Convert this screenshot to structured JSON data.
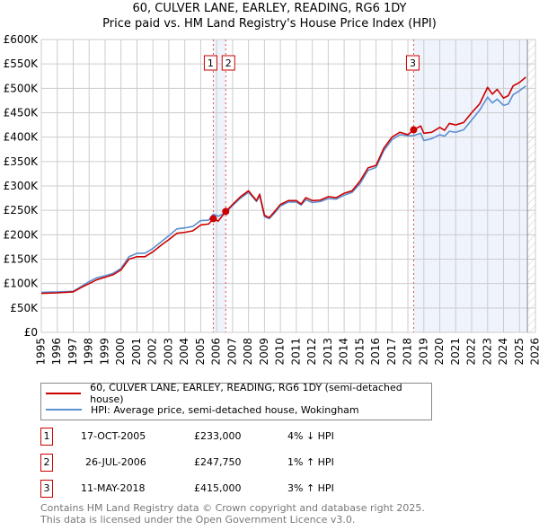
{
  "chart_data": {
    "type": "line",
    "title": "60, CULVER LANE, EARLEY, READING, RG6 1DY",
    "subtitle": "Price paid vs. HM Land Registry's House Price Index (HPI)",
    "xlim": [
      1995,
      2026
    ],
    "ylim": [
      0,
      600000
    ],
    "x_ticks": [
      "1995",
      "1996",
      "1997",
      "1998",
      "1999",
      "2000",
      "2001",
      "2002",
      "2003",
      "2004",
      "2005",
      "2006",
      "2007",
      "2008",
      "2009",
      "2010",
      "2011",
      "2012",
      "2013",
      "2014",
      "2015",
      "2016",
      "2017",
      "2018",
      "2019",
      "2020",
      "2021",
      "2022",
      "2023",
      "2024",
      "2025",
      "2026"
    ],
    "y_ticks": [
      "£0",
      "£50K",
      "£100K",
      "£150K",
      "£200K",
      "£250K",
      "£300K",
      "£350K",
      "£400K",
      "£450K",
      "£500K",
      "£550K",
      "£600K"
    ],
    "grid": true,
    "series": [
      {
        "name": "60, CULVER LANE, EARLEY, READING, RG6 1DY (semi-detached house)",
        "color": "#cc0000",
        "x": [
          1995,
          1996,
          1997,
          1997.5,
          1998,
          1998.5,
          1999,
          1999.5,
          2000,
          2000.5,
          2001,
          2001.5,
          2002,
          2002.5,
          2003,
          2003.5,
          2004,
          2004.5,
          2005,
          2005.5,
          2005.79,
          2006.1,
          2006.57,
          2007,
          2007.5,
          2008,
          2008.3,
          2008.5,
          2008.7,
          2009,
          2009.3,
          2009.7,
          2010,
          2010.5,
          2011,
          2011.3,
          2011.6,
          2012,
          2012.5,
          2013,
          2013.5,
          2014,
          2014.5,
          2015,
          2015.5,
          2016,
          2016.5,
          2017,
          2017.5,
          2018,
          2018.36,
          2018.8,
          2019,
          2019.5,
          2020,
          2020.3,
          2020.6,
          2021,
          2021.5,
          2022,
          2022.5,
          2023,
          2023.3,
          2023.6,
          2024,
          2024.3,
          2024.6,
          2025,
          2025.4
        ],
        "y": [
          80000,
          81000,
          83000,
          92000,
          100000,
          108000,
          113000,
          118000,
          128000,
          150000,
          155000,
          155000,
          165000,
          178000,
          190000,
          203000,
          205000,
          208000,
          220000,
          222000,
          233000,
          228000,
          247750,
          262000,
          278000,
          290000,
          278000,
          270000,
          283000,
          240000,
          235000,
          250000,
          262000,
          270000,
          270000,
          263000,
          276000,
          270000,
          271000,
          278000,
          276000,
          285000,
          290000,
          310000,
          337000,
          342000,
          378000,
          400000,
          410000,
          405000,
          415000,
          423000,
          408000,
          410000,
          420000,
          414000,
          428000,
          425000,
          430000,
          450000,
          468000,
          502000,
          488000,
          498000,
          480000,
          485000,
          505000,
          512000,
          523000
        ]
      },
      {
        "name": "HPI: Average price, semi-detached house, Wokingham",
        "color": "#5b8fd0",
        "x": [
          1995,
          1996,
          1997,
          1997.5,
          1998,
          1998.5,
          1999,
          1999.5,
          2000,
          2000.5,
          2001,
          2001.5,
          2002,
          2002.5,
          2003,
          2003.5,
          2004,
          2004.5,
          2005,
          2005.5,
          2005.79,
          2006.1,
          2006.57,
          2007,
          2007.5,
          2008,
          2008.3,
          2008.5,
          2008.7,
          2009,
          2009.3,
          2009.7,
          2010,
          2010.5,
          2011,
          2011.3,
          2011.6,
          2012,
          2012.5,
          2013,
          2013.5,
          2014,
          2014.5,
          2015,
          2015.5,
          2016,
          2016.5,
          2017,
          2017.5,
          2018,
          2018.36,
          2018.8,
          2019,
          2019.5,
          2020,
          2020.3,
          2020.6,
          2021,
          2021.5,
          2022,
          2022.5,
          2023,
          2023.3,
          2023.6,
          2024,
          2024.3,
          2024.6,
          2025,
          2025.4
        ],
        "y": [
          82000,
          83000,
          84000,
          94000,
          104000,
          112000,
          116000,
          121000,
          131000,
          155000,
          162000,
          162000,
          172000,
          185000,
          198000,
          212000,
          214000,
          217000,
          229000,
          230000,
          242000,
          238000,
          245000,
          260000,
          275000,
          287000,
          276000,
          268000,
          280000,
          237000,
          233000,
          247000,
          259000,
          267000,
          267000,
          261000,
          272000,
          266000,
          268000,
          274000,
          273000,
          281000,
          287000,
          305000,
          332000,
          338000,
          373000,
          395000,
          405000,
          403000,
          403000,
          408000,
          393000,
          397000,
          405000,
          402000,
          412000,
          410000,
          415000,
          435000,
          455000,
          482000,
          470000,
          478000,
          465000,
          468000,
          487000,
          495000,
          505000
        ]
      }
    ],
    "sales": [
      {
        "label": "1",
        "x": 2005.79,
        "y": 233000,
        "date": "17-OCT-2005",
        "price": "£233,000",
        "hpi": "4% ↓ HPI"
      },
      {
        "label": "2",
        "x": 2006.57,
        "y": 247750,
        "date": "26-JUL-2006",
        "price": "£247,750",
        "hpi": "1% ↑ HPI"
      },
      {
        "label": "3",
        "x": 2018.36,
        "y": 415000,
        "date": "11-MAY-2018",
        "price": "£415,000",
        "hpi": "3% ↑ HPI"
      }
    ],
    "forecast_from": 2025.5
  },
  "footer": [
    "Contains HM Land Registry data © Crown copyright and database right 2025.",
    "This data is licensed under the Open Government Licence v3.0."
  ]
}
